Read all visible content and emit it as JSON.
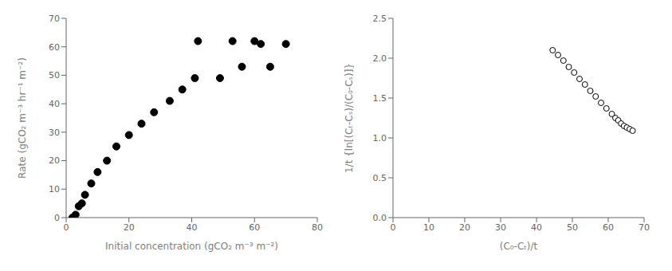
{
  "chart_data": [
    {
      "type": "scatter",
      "x": [
        2,
        3,
        4,
        5,
        6,
        8,
        10,
        13,
        16,
        20,
        24,
        28,
        33,
        37,
        41,
        42,
        49,
        53,
        56,
        60,
        62,
        65,
        70
      ],
      "values": [
        0,
        1,
        4,
        5,
        8,
        12,
        16,
        20,
        25,
        29,
        33,
        37,
        41,
        45,
        49,
        62,
        49,
        62,
        53,
        62,
        61,
        53,
        61
      ],
      "x_label": "Initial concentration (gCO₂ m⁻³ m⁻²)",
      "y_label": "Rate (gCO₂ m⁻³ hr⁻¹ m⁻²)",
      "xlim": [
        0,
        80
      ],
      "ylim": [
        0,
        70
      ],
      "xticks": [
        0,
        20,
        40,
        60,
        80
      ],
      "yticks": [
        0,
        10,
        20,
        30,
        40,
        50,
        60,
        70
      ],
      "color": "#000000",
      "marker": "circle",
      "grid": false
    },
    {
      "type": "scatter",
      "x": [
        44.5,
        46.0,
        47.5,
        49.0,
        50.5,
        52.0,
        53.5,
        55.0,
        56.5,
        58.0,
        59.5,
        61.0,
        62.0,
        62.8,
        63.6,
        64.4,
        65.2,
        66.0,
        66.8
      ],
      "values": [
        2.1,
        2.04,
        1.97,
        1.89,
        1.82,
        1.74,
        1.67,
        1.59,
        1.52,
        1.44,
        1.37,
        1.3,
        1.25,
        1.22,
        1.18,
        1.15,
        1.13,
        1.11,
        1.09
      ],
      "x_label": "(C₀-Cₜ)/t",
      "y_label": "1/t {ln[(Cₜ-Cₛ)/(C₀-Cₛ)]}",
      "xlim": [
        0,
        70
      ],
      "ylim": [
        0,
        2.5
      ],
      "xticks": [
        0,
        10,
        20,
        30,
        40,
        50,
        60,
        70
      ],
      "yticks": [
        {
          "value": 0,
          "label": "0.0"
        },
        0.5,
        {
          "value": 1,
          "label": "1.0"
        },
        1.5,
        {
          "value": 2,
          "label": "2.0"
        },
        2.5
      ],
      "color": "#000000",
      "marker": "open circle",
      "grid": false
    }
  ]
}
